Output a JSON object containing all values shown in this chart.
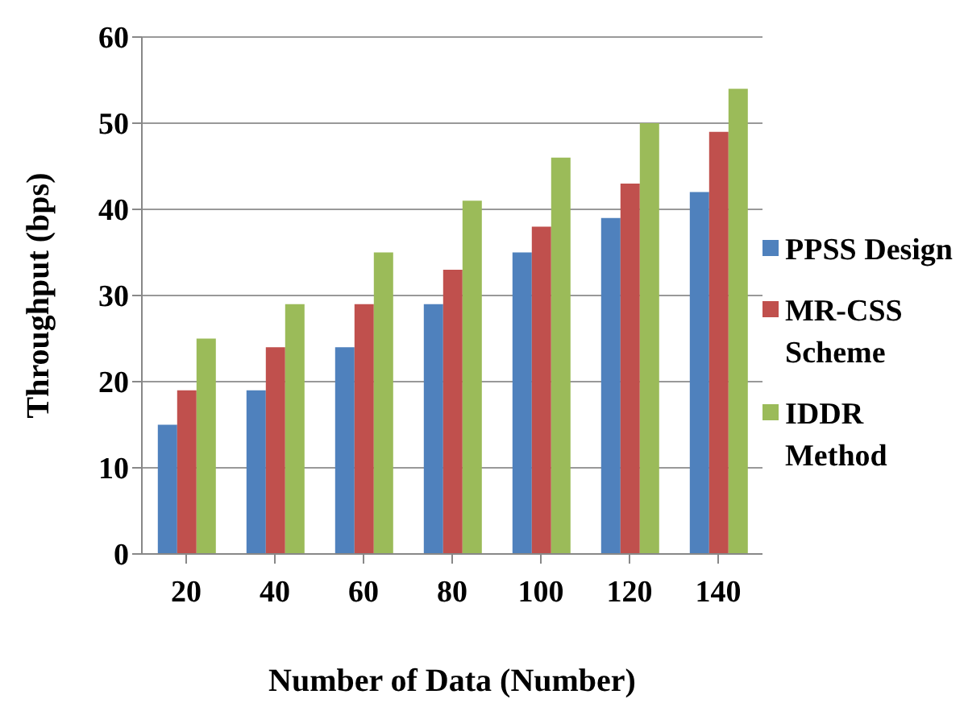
{
  "chart_data": {
    "type": "bar",
    "xlabel": "Number of Data (Number)",
    "ylabel": "Throughput (bps)",
    "categories": [
      "20",
      "40",
      "60",
      "80",
      "100",
      "120",
      "140"
    ],
    "series": [
      {
        "name": "PPSS Design",
        "color": "#4f81bd",
        "values": [
          15,
          19,
          24,
          29,
          35,
          39,
          42
        ]
      },
      {
        "name": "MR-CSS Scheme",
        "color": "#c0504d",
        "values": [
          19,
          24,
          29,
          33,
          38,
          43,
          49
        ]
      },
      {
        "name": "IDDR Method",
        "color": "#9bbb59",
        "values": [
          25,
          29,
          35,
          41,
          46,
          50,
          54
        ]
      }
    ],
    "ylim": [
      0,
      60
    ],
    "yticks": [
      0,
      10,
      20,
      30,
      40,
      50,
      60
    ],
    "grid": "y",
    "legend": "right"
  }
}
